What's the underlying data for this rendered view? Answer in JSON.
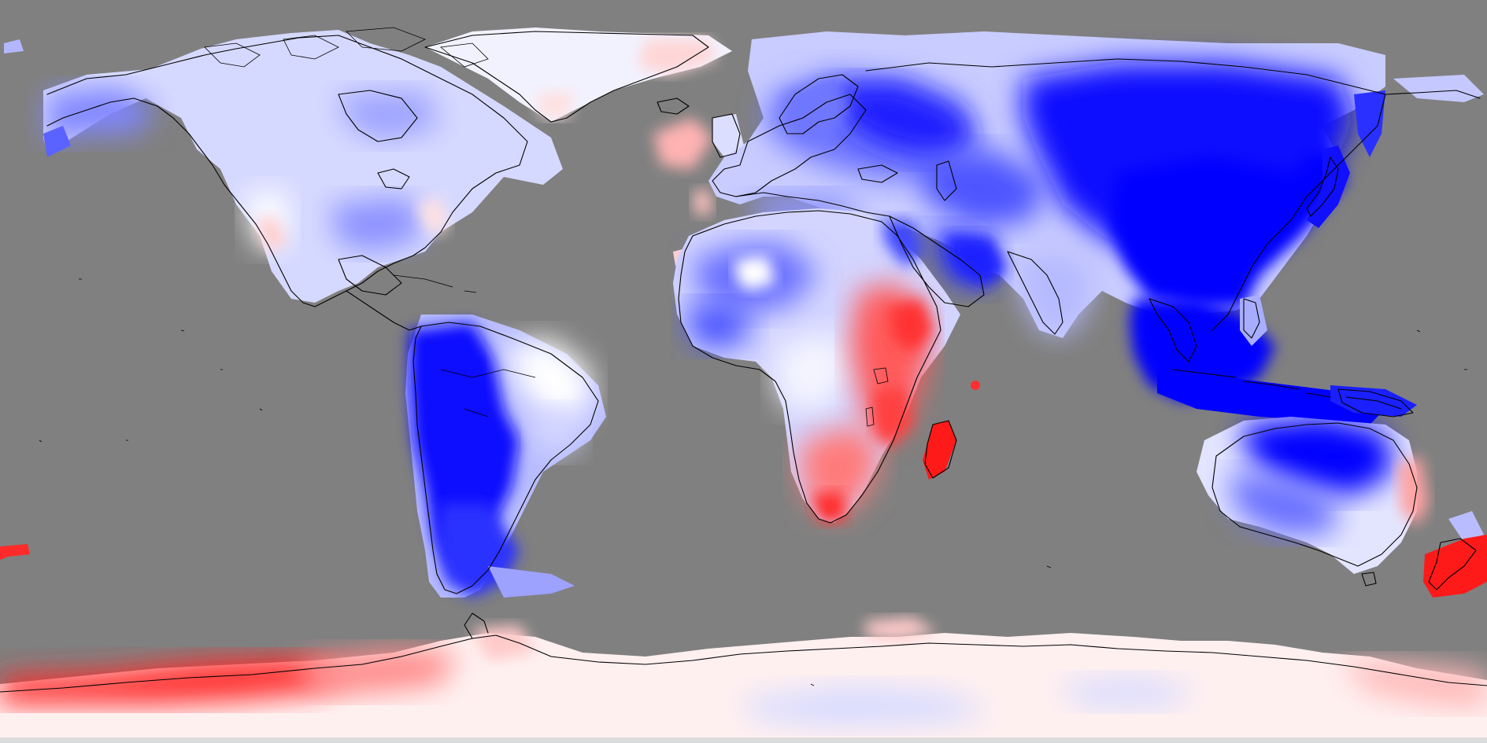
{
  "map": {
    "projection": "equirectangular",
    "background_color": "#808080",
    "coastline_color": "#000000",
    "colormap": {
      "negative": "#0000ff",
      "neutral": "#ffffff",
      "positive": "#ff0000",
      "no_data": "#808080"
    },
    "legend": null,
    "title": null
  }
}
